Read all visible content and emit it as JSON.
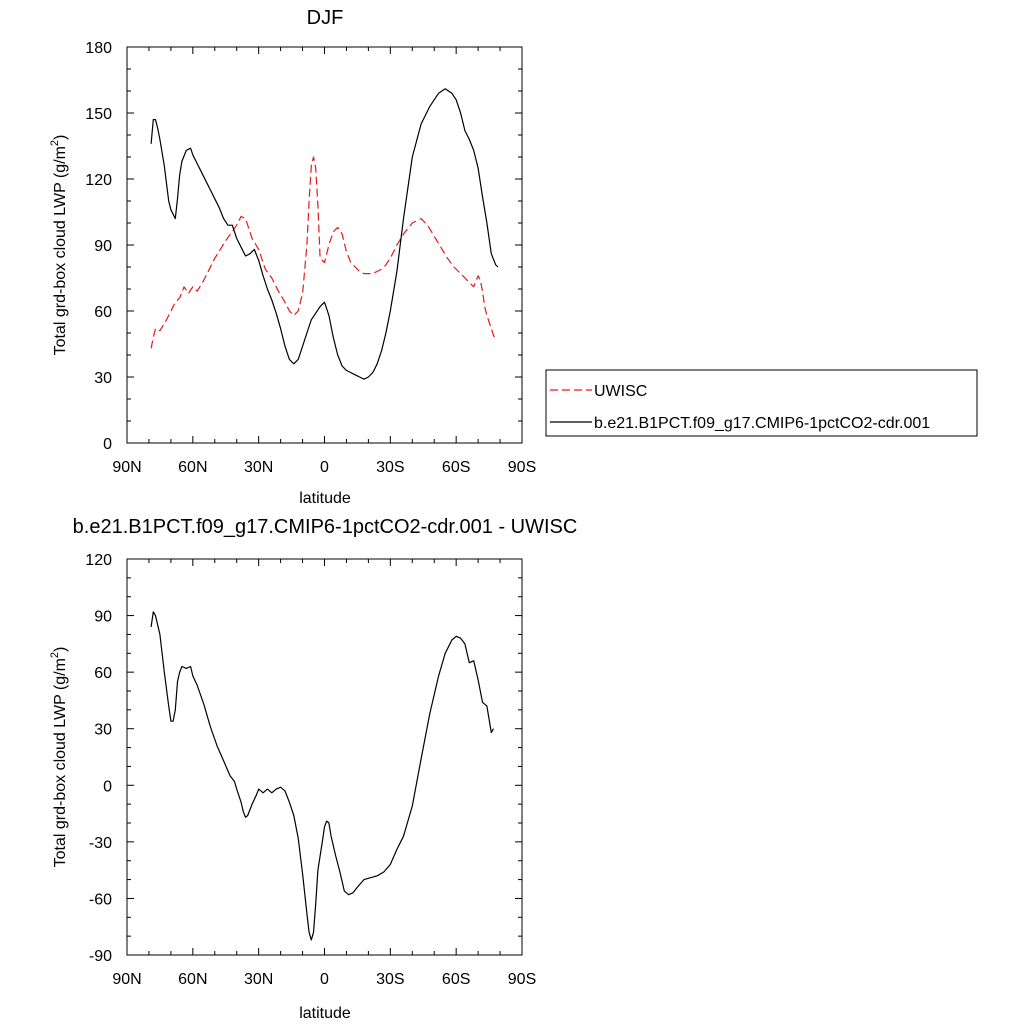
{
  "chart_data": [
    {
      "type": "line",
      "title": "DJF",
      "xlabel": "latitude",
      "ylabel": "Total grd-box cloud LWP (g/m²)",
      "ylabel_main": "Total grd-box cloud LWP (g/m",
      "ylabel_sup": "2",
      "ylabel_close": ")",
      "xlim": [
        90,
        -90
      ],
      "ylim": [
        0,
        180
      ],
      "xticks": [
        90,
        60,
        30,
        0,
        -30,
        -60,
        -90
      ],
      "xtick_labels": [
        "90N",
        "60N",
        "30N",
        "0",
        "30S",
        "60S",
        "90S"
      ],
      "yticks": [
        0,
        30,
        60,
        90,
        120,
        150,
        180
      ],
      "ytick_labels": [
        "0",
        "30",
        "60",
        "90",
        "120",
        "150",
        "180"
      ],
      "legend_placement": "right",
      "series": [
        {
          "name": "UWISC",
          "color": "#e41a1c",
          "dashed": true,
          "x": [
            79,
            78,
            77,
            75,
            72,
            70,
            68,
            66,
            64,
            62,
            60,
            58,
            55,
            50,
            45,
            40,
            38,
            36,
            33,
            30,
            27,
            24,
            21,
            18,
            16,
            14,
            12,
            10,
            8,
            7,
            6,
            5,
            4,
            3,
            2,
            0,
            -2,
            -4,
            -6,
            -8,
            -10,
            -12,
            -14,
            -16,
            -18,
            -20,
            -22,
            -24,
            -26,
            -28,
            -30,
            -33,
            -36,
            -40,
            -44,
            -47,
            -50,
            -53,
            -56,
            -59,
            -62,
            -65,
            -68,
            -70,
            -71,
            -72,
            -73,
            -74,
            -75,
            -76,
            -77,
            -78
          ],
          "y": [
            43,
            48,
            52,
            51,
            56,
            60,
            64,
            66,
            71,
            68,
            71,
            69,
            74,
            84,
            92,
            99,
            103,
            102,
            93,
            88,
            79,
            75,
            69,
            64,
            60,
            58,
            60,
            68,
            90,
            110,
            126,
            130,
            125,
            108,
            84,
            82,
            90,
            96,
            98,
            95,
            87,
            82,
            80,
            78,
            77,
            77,
            77,
            78,
            79,
            81,
            84,
            90,
            95,
            100,
            102,
            99,
            94,
            89,
            84,
            80,
            77,
            74,
            71,
            76,
            74,
            69,
            62,
            58,
            55,
            52,
            49,
            47
          ]
        },
        {
          "name": "b.e21.B1PCT.f09_g17.CMIP6-1pctCO2-cdr.001",
          "color": "#000000",
          "dashed": false,
          "x": [
            79,
            78,
            77,
            76,
            75,
            73,
            71,
            70,
            69,
            68,
            67,
            66,
            65,
            63,
            61,
            60,
            58,
            55,
            52,
            50,
            48,
            46,
            44,
            42,
            40,
            38,
            36,
            34,
            32,
            30,
            28,
            26,
            24,
            22,
            20,
            18,
            16,
            14,
            12,
            10,
            8,
            6,
            4,
            2,
            0,
            -2,
            -4,
            -6,
            -8,
            -10,
            -12,
            -14,
            -16,
            -18,
            -20,
            -22,
            -24,
            -26,
            -28,
            -30,
            -33,
            -36,
            -40,
            -44,
            -48,
            -52,
            -55,
            -58,
            -60,
            -62,
            -64,
            -66,
            -68,
            -70,
            -72,
            -74,
            -76,
            -78,
            -79
          ],
          "y": [
            136,
            147,
            147,
            143,
            138,
            126,
            110,
            106,
            104,
            102,
            111,
            122,
            128,
            133,
            134,
            131,
            127,
            121,
            115,
            111,
            107,
            102,
            99,
            99,
            93,
            89,
            85,
            86,
            88,
            83,
            76,
            70,
            65,
            59,
            52,
            44,
            38,
            36,
            38,
            44,
            50,
            56,
            59,
            62,
            64,
            58,
            48,
            40,
            35,
            33,
            32,
            31,
            30,
            29,
            30,
            32,
            36,
            42,
            50,
            60,
            78,
            102,
            130,
            145,
            153,
            159,
            161,
            159,
            156,
            150,
            142,
            138,
            133,
            125,
            112,
            100,
            86,
            81,
            80
          ]
        }
      ]
    },
    {
      "type": "line",
      "title": "b.e21.B1PCT.f09_g17.CMIP6-1pctCO2-cdr.001 - UWISC",
      "xlabel": "latitude",
      "ylabel": "Total grd-box cloud LWP (g/m²)",
      "ylabel_main": "Total grd-box cloud LWP (g/m",
      "ylabel_sup": "2",
      "ylabel_close": ")",
      "xlim": [
        90,
        -90
      ],
      "ylim": [
        -90,
        120
      ],
      "xticks": [
        90,
        60,
        30,
        0,
        -30,
        -60,
        -90
      ],
      "xtick_labels": [
        "90N",
        "60N",
        "30N",
        "0",
        "30S",
        "60S",
        "90S"
      ],
      "yticks": [
        -90,
        -60,
        -30,
        0,
        30,
        60,
        90,
        120
      ],
      "ytick_labels": [
        "-90",
        "-60",
        "-30",
        "0",
        "30",
        "60",
        "90",
        "120"
      ],
      "series": [
        {
          "name": "b.e21.B1PCT.f09_g17.CMIP6-1pctCO2-cdr.001 - UWISC",
          "color": "#000000",
          "dashed": false,
          "x": [
            79,
            78,
            77,
            75,
            73,
            71,
            70,
            69,
            68,
            67,
            66,
            65,
            63,
            61,
            60,
            58,
            55,
            52,
            49,
            46,
            43,
            41,
            40,
            38,
            37,
            36,
            35,
            33,
            31,
            30,
            28,
            26,
            24,
            22,
            20,
            18,
            16,
            14,
            12,
            10,
            8,
            7,
            6,
            5,
            4,
            3,
            1,
            0,
            -1,
            -2,
            -3,
            -5,
            -7,
            -9,
            -11,
            -13,
            -15,
            -18,
            -21,
            -24,
            -27,
            -30,
            -33,
            -36,
            -40,
            -44,
            -48,
            -52,
            -55,
            -58,
            -60,
            -62,
            -64,
            -66,
            -68,
            -70,
            -72,
            -74,
            -76,
            -77
          ],
          "y": [
            84,
            92,
            90,
            80,
            60,
            42,
            34,
            34,
            40,
            55,
            60,
            63,
            62,
            63,
            58,
            53,
            43,
            31,
            21,
            13,
            5,
            2,
            -2,
            -9,
            -14,
            -17,
            -16,
            -10,
            -5,
            -2,
            -4,
            -2,
            -4,
            -2,
            -1,
            -3,
            -9,
            -16,
            -28,
            -47,
            -68,
            -78,
            -82,
            -78,
            -63,
            -45,
            -30,
            -22,
            -19,
            -20,
            -27,
            -37,
            -46,
            -56,
            -58,
            -57,
            -54,
            -50,
            -49,
            -48,
            -46,
            -42,
            -34,
            -27,
            -11,
            14,
            38,
            58,
            70,
            77,
            79,
            78,
            75,
            65,
            66,
            56,
            44,
            42,
            28,
            30
          ]
        }
      ]
    }
  ]
}
